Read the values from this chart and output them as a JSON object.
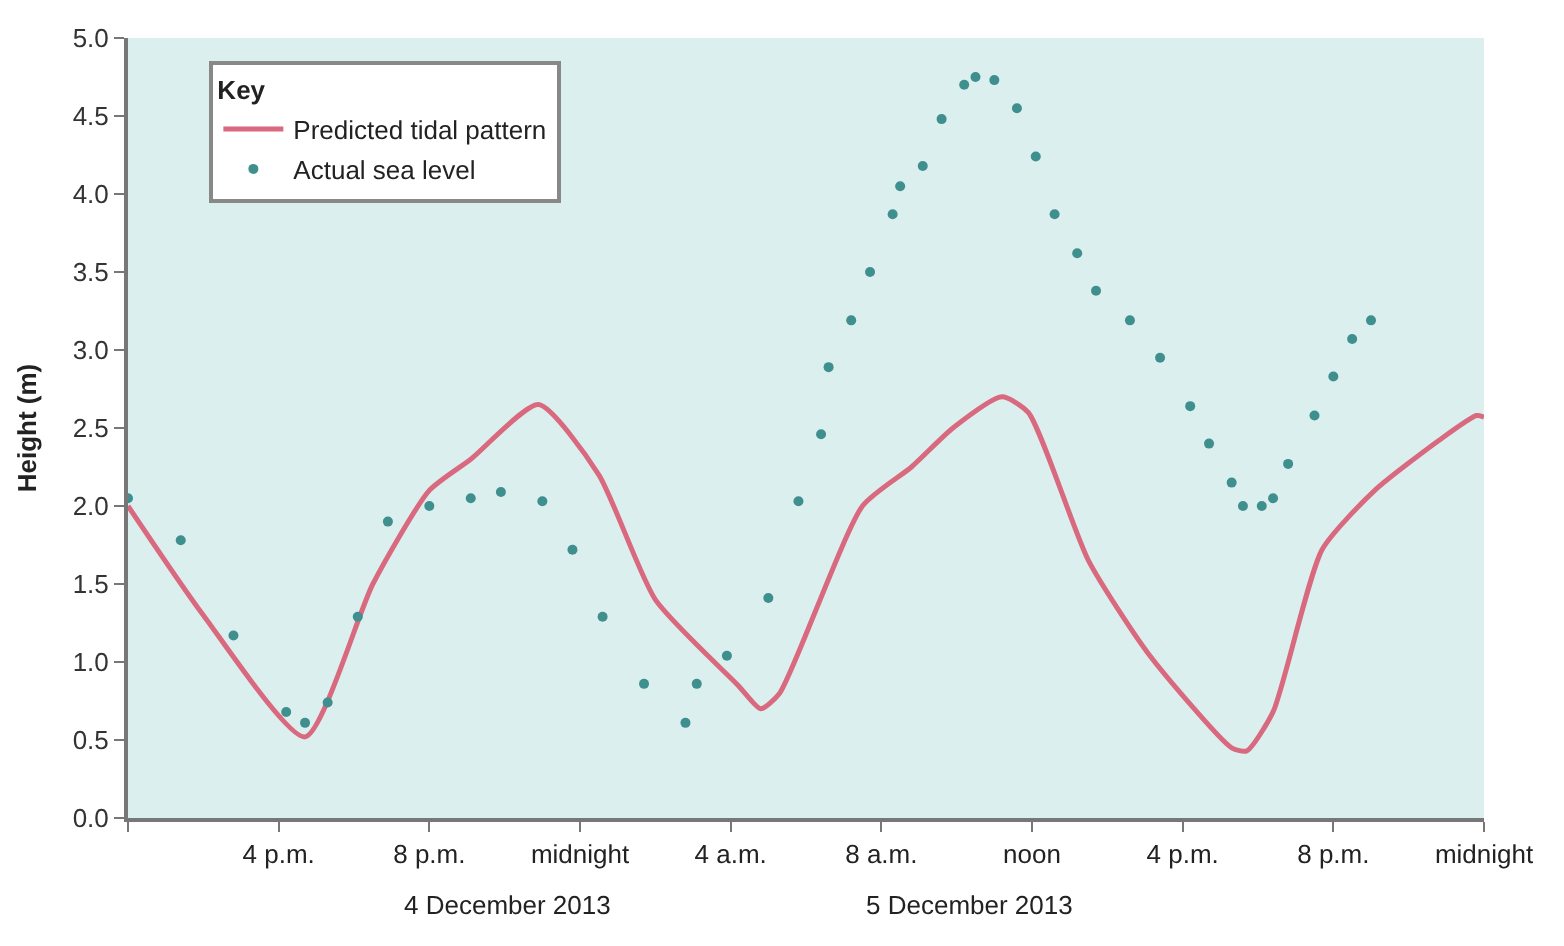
{
  "chart_data": {
    "type": "line",
    "ylabel": "Height (m)",
    "legend_title": "Key",
    "legend": "top left",
    "grid": false,
    "xlim": [
      "2013-12-04T12:00",
      "2013-12-06T00:00"
    ],
    "xticks": [
      {
        "value": "2013-12-04T12:00",
        "label": null
      },
      {
        "value": "2013-12-04T16:00",
        "label": "4 p.m."
      },
      {
        "value": "2013-12-04T20:00",
        "label": "8 p.m."
      },
      {
        "value": "2013-12-05T00:00",
        "label": "midnight"
      },
      {
        "value": "2013-12-05T04:00",
        "label": "4 a.m."
      },
      {
        "value": "2013-12-05T08:00",
        "label": "8 a.m."
      },
      {
        "value": "2013-12-05T12:00",
        "label": "noon"
      },
      {
        "value": "2013-12-05T16:00",
        "label": "4 p.m."
      },
      {
        "value": "2013-12-05T20:00",
        "label": "8 p.m."
      },
      {
        "value": "2013-12-06T00:00",
        "label": "midnight"
      }
    ],
    "ylim": [
      0,
      5
    ],
    "yticks": [
      {
        "value": 0,
        "label": "0.0"
      },
      0.5,
      {
        "value": 1,
        "label": "1.0"
      },
      1.5,
      {
        "value": 2,
        "label": "2.0"
      },
      2.5,
      {
        "value": 3,
        "label": "3.0"
      },
      3.5,
      {
        "value": 4,
        "label": "4.0"
      },
      4.5,
      {
        "value": 5,
        "label": "5.0"
      }
    ],
    "series": [
      {
        "name": "Predicted tidal pattern",
        "color": "#d9697f",
        "marker": "none",
        "line_style": "solid",
        "x": [
          "2013-12-04T12:00",
          "2013-12-04T14:00",
          "2013-12-04T16:42",
          "2013-12-04T18:30",
          "2013-12-04T20:00",
          "2013-12-04T21:06",
          "2013-12-04T22:54",
          "2013-12-05T00:30",
          "2013-12-05T02:00",
          "2013-12-05T04:12",
          "2013-12-05T04:48",
          "2013-12-05T05:18",
          "2013-12-05T07:30",
          "2013-12-05T08:48",
          "2013-12-05T09:54",
          "2013-12-05T11:12",
          "2013-12-05T11:54",
          "2013-12-05T13:30",
          "2013-12-05T15:06",
          "2013-12-05T17:18",
          "2013-12-05T17:42",
          "2013-12-05T18:24",
          "2013-12-05T19:42",
          "2013-12-05T21:06",
          "2013-12-05T22:48",
          "2013-12-05T23:48",
          "2013-12-06T00:00"
        ],
        "values": [
          2.0,
          1.3,
          0.52,
          1.5,
          2.1,
          2.3,
          2.65,
          2.2,
          1.4,
          0.85,
          0.7,
          0.8,
          2.0,
          2.25,
          2.5,
          2.7,
          2.6,
          1.65,
          1.05,
          0.45,
          0.43,
          0.68,
          1.72,
          2.1,
          2.42,
          2.58,
          2.57
        ]
      },
      {
        "name": "Actual sea level",
        "type": "scatter",
        "color": "#3f8f8f",
        "marker": "circle",
        "x": [
          "2013-12-04T12:00",
          "2013-12-04T13:24",
          "2013-12-04T14:48",
          "2013-12-04T16:12",
          "2013-12-04T16:42",
          "2013-12-04T17:18",
          "2013-12-04T18:06",
          "2013-12-04T18:54",
          "2013-12-04T20:00",
          "2013-12-04T21:06",
          "2013-12-04T21:54",
          "2013-12-04T23:00",
          "2013-12-04T23:48",
          "2013-12-05T00:36",
          "2013-12-05T01:42",
          "2013-12-05T02:48",
          "2013-12-05T03:06",
          "2013-12-05T03:54",
          "2013-12-05T05:00",
          "2013-12-05T05:48",
          "2013-12-05T06:24",
          "2013-12-05T06:36",
          "2013-12-05T07:12",
          "2013-12-05T07:42",
          "2013-12-05T08:18",
          "2013-12-05T08:30",
          "2013-12-05T09:06",
          "2013-12-05T09:36",
          "2013-12-05T10:12",
          "2013-12-05T10:30",
          "2013-12-05T11:00",
          "2013-12-05T11:36",
          "2013-12-05T12:06",
          "2013-12-05T12:36",
          "2013-12-05T13:12",
          "2013-12-05T13:42",
          "2013-12-05T14:36",
          "2013-12-05T15:24",
          "2013-12-05T16:12",
          "2013-12-05T16:42",
          "2013-12-05T17:18",
          "2013-12-05T17:36",
          "2013-12-05T18:06",
          "2013-12-05T18:24",
          "2013-12-05T18:48",
          "2013-12-05T19:30",
          "2013-12-05T20:00",
          "2013-12-05T20:30",
          "2013-12-05T21:00"
        ],
        "values": [
          2.05,
          1.78,
          1.17,
          0.68,
          0.61,
          0.74,
          1.29,
          1.9,
          2.0,
          2.05,
          2.09,
          2.03,
          1.72,
          1.29,
          0.86,
          0.61,
          0.86,
          1.04,
          1.41,
          2.03,
          2.46,
          2.89,
          3.19,
          3.5,
          3.87,
          4.05,
          4.18,
          4.48,
          4.7,
          4.75,
          4.73,
          4.55,
          4.24,
          3.87,
          3.62,
          3.38,
          3.19,
          2.95,
          2.64,
          2.4,
          2.15,
          2.0,
          2.0,
          2.05,
          2.27,
          2.58,
          2.83,
          3.07,
          3.19
        ]
      }
    ],
    "annotations": [
      "4 December 2013",
      "5 December 2013"
    ]
  }
}
